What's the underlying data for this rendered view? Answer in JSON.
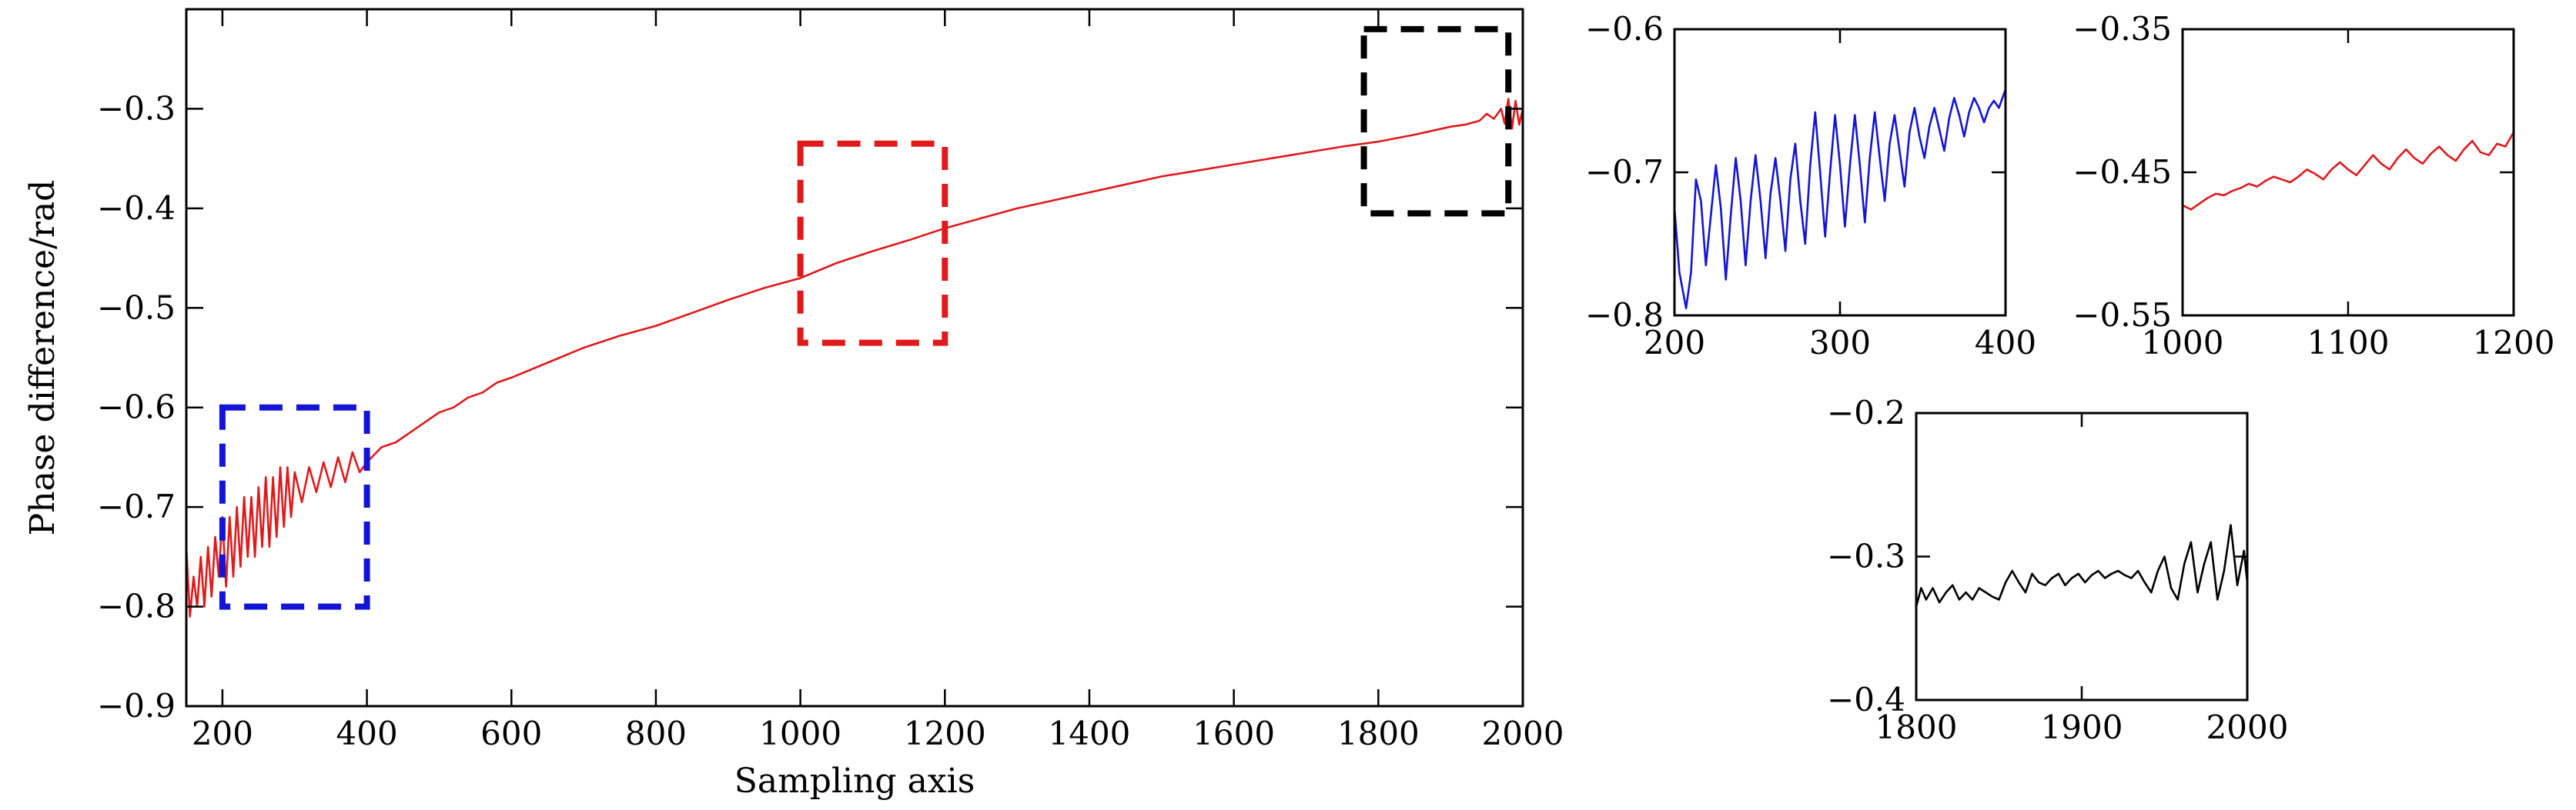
{
  "chart_data": [
    {
      "id": "main",
      "type": "line",
      "xlabel": "Sampling axis",
      "ylabel": "Phase difference/rad",
      "xlim": [
        150,
        2000
      ],
      "ylim": [
        -0.9,
        -0.2
      ],
      "xticks": [
        200,
        400,
        600,
        800,
        1000,
        1200,
        1400,
        1600,
        1800,
        2000
      ],
      "xtick_labels": [
        "200",
        "400",
        "600",
        "800",
        "1000",
        "1200",
        "1400",
        "1600",
        "1800",
        "2000"
      ],
      "yticks": [
        -0.9,
        -0.8,
        -0.7,
        -0.6,
        -0.5,
        -0.4,
        -0.3
      ],
      "ytick_labels": [
        "−0.9",
        "−0.8",
        "−0.7",
        "−0.6",
        "−0.5",
        "−0.4",
        "−0.3"
      ],
      "series": [
        {
          "color": "#e0191c",
          "x": [
            150,
            155,
            160,
            165,
            170,
            175,
            180,
            185,
            190,
            195,
            200,
            205,
            210,
            215,
            220,
            225,
            230,
            235,
            240,
            245,
            250,
            255,
            260,
            265,
            270,
            275,
            280,
            285,
            290,
            295,
            300,
            310,
            320,
            330,
            340,
            350,
            360,
            370,
            380,
            390,
            400,
            420,
            440,
            460,
            480,
            500,
            520,
            540,
            560,
            580,
            600,
            650,
            700,
            750,
            800,
            850,
            900,
            950,
            1000,
            1050,
            1100,
            1150,
            1200,
            1250,
            1300,
            1350,
            1400,
            1450,
            1500,
            1550,
            1600,
            1650,
            1700,
            1750,
            1800,
            1850,
            1900,
            1920,
            1940,
            1950,
            1960,
            1970,
            1975,
            1980,
            1985,
            1990,
            1995,
            2000
          ],
          "y": [
            -0.74,
            -0.81,
            -0.77,
            -0.8,
            -0.75,
            -0.8,
            -0.74,
            -0.79,
            -0.73,
            -0.77,
            -0.71,
            -0.78,
            -0.71,
            -0.77,
            -0.7,
            -0.76,
            -0.69,
            -0.75,
            -0.69,
            -0.75,
            -0.68,
            -0.74,
            -0.67,
            -0.74,
            -0.67,
            -0.73,
            -0.66,
            -0.72,
            -0.66,
            -0.71,
            -0.665,
            -0.695,
            -0.66,
            -0.685,
            -0.655,
            -0.68,
            -0.65,
            -0.675,
            -0.645,
            -0.665,
            -0.655,
            -0.64,
            -0.635,
            -0.625,
            -0.615,
            -0.605,
            -0.6,
            -0.59,
            -0.585,
            -0.575,
            -0.57,
            -0.555,
            -0.54,
            -0.528,
            -0.518,
            -0.505,
            -0.492,
            -0.48,
            -0.47,
            -0.455,
            -0.443,
            -0.432,
            -0.42,
            -0.41,
            -0.4,
            -0.392,
            -0.384,
            -0.376,
            -0.368,
            -0.362,
            -0.356,
            -0.35,
            -0.344,
            -0.338,
            -0.333,
            -0.326,
            -0.318,
            -0.316,
            -0.312,
            -0.305,
            -0.31,
            -0.3,
            -0.315,
            -0.29,
            -0.32,
            -0.292,
            -0.316,
            -0.3
          ]
        }
      ],
      "zoom_boxes": [
        {
          "color": "#1414d6",
          "x": [
            200,
            400
          ],
          "y": [
            -0.8,
            -0.6
          ]
        },
        {
          "color": "#e0191c",
          "x": [
            1000,
            1200
          ],
          "y": [
            -0.535,
            -0.335
          ]
        },
        {
          "color": "#000000",
          "x": [
            1780,
            1980
          ],
          "y": [
            -0.405,
            -0.22
          ]
        }
      ]
    },
    {
      "id": "zoom-200-400",
      "type": "line",
      "xlim": [
        200,
        400
      ],
      "ylim": [
        -0.8,
        -0.6
      ],
      "xticks": [
        200,
        300,
        400
      ],
      "xtick_labels": [
        "200",
        "300",
        "400"
      ],
      "yticks": [
        -0.8,
        -0.7,
        -0.6
      ],
      "ytick_labels": [
        "−0.8",
        "−0.7",
        "−0.6"
      ],
      "series": [
        {
          "color": "#1414d6",
          "x": [
            200,
            203,
            207,
            210,
            213,
            216,
            219,
            222,
            225,
            228,
            231,
            234,
            237,
            240,
            243,
            246,
            249,
            252,
            255,
            258,
            261,
            264,
            267,
            270,
            273,
            276,
            279,
            282,
            285,
            288,
            291,
            294,
            297,
            300,
            303,
            306,
            309,
            312,
            315,
            318,
            321,
            324,
            327,
            330,
            333,
            336,
            339,
            342,
            345,
            348,
            351,
            354,
            357,
            360,
            363,
            366,
            369,
            372,
            375,
            378,
            381,
            384,
            387,
            390,
            393,
            396,
            400
          ],
          "y": [
            -0.725,
            -0.77,
            -0.795,
            -0.77,
            -0.705,
            -0.72,
            -0.765,
            -0.73,
            -0.695,
            -0.725,
            -0.775,
            -0.73,
            -0.69,
            -0.72,
            -0.765,
            -0.72,
            -0.688,
            -0.72,
            -0.76,
            -0.715,
            -0.69,
            -0.72,
            -0.755,
            -0.705,
            -0.68,
            -0.72,
            -0.75,
            -0.695,
            -0.658,
            -0.7,
            -0.745,
            -0.7,
            -0.66,
            -0.695,
            -0.738,
            -0.695,
            -0.66,
            -0.695,
            -0.735,
            -0.69,
            -0.658,
            -0.69,
            -0.72,
            -0.68,
            -0.66,
            -0.685,
            -0.71,
            -0.672,
            -0.655,
            -0.675,
            -0.69,
            -0.668,
            -0.655,
            -0.67,
            -0.685,
            -0.662,
            -0.648,
            -0.66,
            -0.675,
            -0.658,
            -0.648,
            -0.655,
            -0.665,
            -0.655,
            -0.65,
            -0.655,
            -0.642
          ]
        }
      ]
    },
    {
      "id": "zoom-1000-1200",
      "type": "line",
      "xlim": [
        1000,
        1200
      ],
      "ylim": [
        -0.55,
        -0.35
      ],
      "xticks": [
        1000,
        1100,
        1200
      ],
      "xtick_labels": [
        "1000",
        "1100",
        "1200"
      ],
      "yticks": [
        -0.55,
        -0.45,
        -0.35
      ],
      "ytick_labels": [
        "−0.55",
        "−0.45",
        "−0.35"
      ],
      "series": [
        {
          "color": "#e0191c",
          "x": [
            1000,
            1005,
            1010,
            1015,
            1020,
            1025,
            1030,
            1035,
            1040,
            1045,
            1050,
            1055,
            1060,
            1065,
            1070,
            1075,
            1080,
            1085,
            1090,
            1095,
            1100,
            1105,
            1110,
            1115,
            1120,
            1125,
            1130,
            1135,
            1140,
            1145,
            1150,
            1155,
            1160,
            1165,
            1170,
            1175,
            1180,
            1185,
            1190,
            1195,
            1200
          ],
          "y": [
            -0.473,
            -0.476,
            -0.472,
            -0.468,
            -0.465,
            -0.466,
            -0.463,
            -0.461,
            -0.458,
            -0.46,
            -0.456,
            -0.453,
            -0.455,
            -0.457,
            -0.453,
            -0.448,
            -0.451,
            -0.455,
            -0.448,
            -0.443,
            -0.448,
            -0.452,
            -0.445,
            -0.438,
            -0.444,
            -0.448,
            -0.44,
            -0.434,
            -0.44,
            -0.444,
            -0.437,
            -0.432,
            -0.438,
            -0.442,
            -0.434,
            -0.428,
            -0.436,
            -0.438,
            -0.43,
            -0.432,
            -0.422
          ]
        }
      ]
    },
    {
      "id": "zoom-1800-2000",
      "type": "line",
      "xlim": [
        1800,
        2000
      ],
      "ylim": [
        -0.4,
        -0.2
      ],
      "xticks": [
        1800,
        1900,
        2000
      ],
      "xtick_labels": [
        "1800",
        "1900",
        "2000"
      ],
      "yticks": [
        -0.4,
        -0.3,
        -0.2
      ],
      "ytick_labels": [
        "−0.4",
        "−0.3",
        "−0.2"
      ],
      "series": [
        {
          "color": "#000000",
          "x": [
            1800,
            1803,
            1806,
            1810,
            1814,
            1818,
            1822,
            1826,
            1830,
            1834,
            1838,
            1842,
            1846,
            1850,
            1854,
            1858,
            1862,
            1866,
            1870,
            1874,
            1878,
            1882,
            1886,
            1890,
            1894,
            1898,
            1902,
            1906,
            1910,
            1914,
            1918,
            1922,
            1926,
            1930,
            1934,
            1938,
            1942,
            1946,
            1950,
            1954,
            1958,
            1962,
            1966,
            1970,
            1974,
            1978,
            1982,
            1986,
            1990,
            1994,
            1998,
            2000
          ],
          "y": [
            -0.335,
            -0.322,
            -0.33,
            -0.322,
            -0.332,
            -0.325,
            -0.32,
            -0.33,
            -0.325,
            -0.33,
            -0.322,
            -0.325,
            -0.328,
            -0.33,
            -0.318,
            -0.31,
            -0.318,
            -0.325,
            -0.312,
            -0.318,
            -0.32,
            -0.315,
            -0.312,
            -0.32,
            -0.315,
            -0.312,
            -0.318,
            -0.313,
            -0.31,
            -0.315,
            -0.312,
            -0.31,
            -0.313,
            -0.315,
            -0.31,
            -0.318,
            -0.325,
            -0.31,
            -0.3,
            -0.322,
            -0.33,
            -0.305,
            -0.29,
            -0.325,
            -0.305,
            -0.29,
            -0.33,
            -0.31,
            -0.278,
            -0.32,
            -0.296,
            -0.318
          ]
        }
      ]
    }
  ]
}
